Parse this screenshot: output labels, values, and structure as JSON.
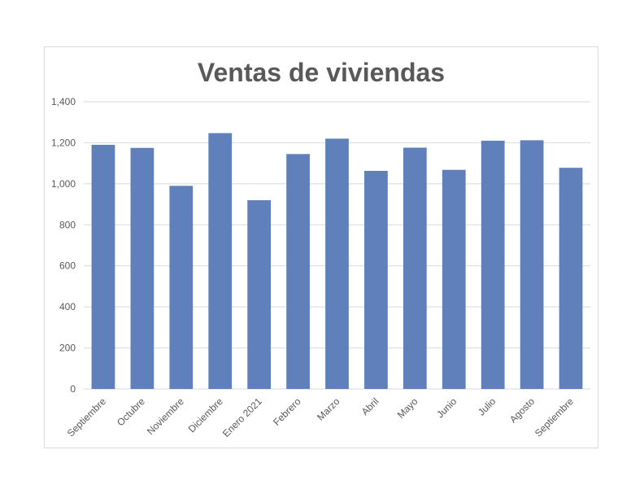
{
  "chart_data": {
    "type": "bar",
    "title": "Ventas de viviendas",
    "xlabel": "",
    "ylabel": "",
    "categories": [
      "Septiembre",
      "Octubre",
      "Noviembre",
      "Diciembre",
      "Enero 2021",
      "Febrero",
      "Marzo",
      "Abril",
      "Mayo",
      "Junio",
      "Julio",
      "Agosto",
      "Septiembre"
    ],
    "values": [
      1190,
      1175,
      990,
      1247,
      920,
      1145,
      1220,
      1063,
      1176,
      1068,
      1210,
      1212,
      1078
    ],
    "ylim": [
      0,
      1400
    ],
    "yticks": [
      0,
      200,
      400,
      600,
      800,
      1000,
      1200,
      1400
    ],
    "ytick_labels": [
      "0",
      "200",
      "400",
      "600",
      "800",
      "1,000",
      "1,200",
      "1,400"
    ],
    "grid": true,
    "legend": "none",
    "bar_color": "#6080bb",
    "grid_color": "#d9d9d9"
  }
}
